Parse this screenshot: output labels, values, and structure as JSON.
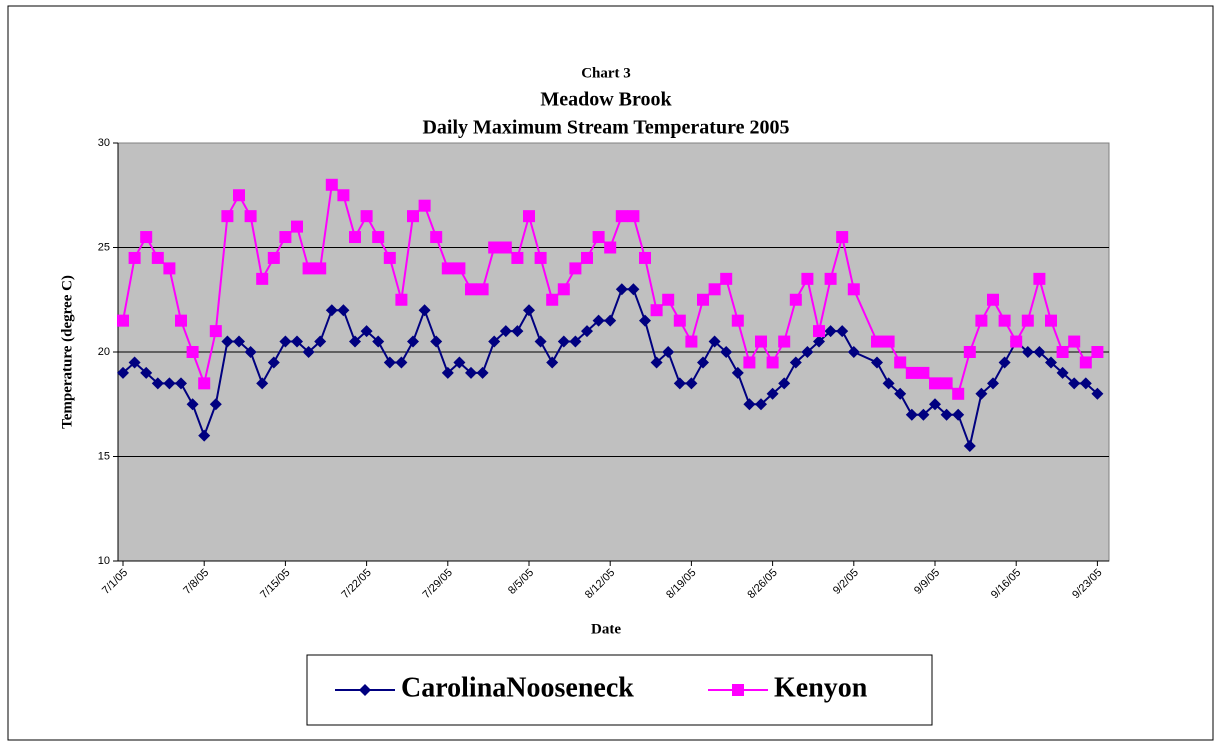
{
  "chart_data": {
    "type": "line",
    "title_lines": [
      "Chart 3",
      "Meadow Brook",
      "Daily Maximum Stream Temperature 2005"
    ],
    "xlabel": "Date",
    "ylabel": "Temperature (degree C)",
    "x": [
      "7/1/05",
      "7/2/05",
      "7/3/05",
      "7/4/05",
      "7/5/05",
      "7/6/05",
      "7/7/05",
      "7/8/05",
      "7/9/05",
      "7/10/05",
      "7/11/05",
      "7/12/05",
      "7/13/05",
      "7/14/05",
      "7/15/05",
      "7/16/05",
      "7/17/05",
      "7/18/05",
      "7/19/05",
      "7/20/05",
      "7/21/05",
      "7/22/05",
      "7/23/05",
      "7/24/05",
      "7/25/05",
      "7/26/05",
      "7/27/05",
      "7/28/05",
      "7/29/05",
      "7/30/05",
      "7/31/05",
      "8/1/05",
      "8/2/05",
      "8/3/05",
      "8/4/05",
      "8/5/05",
      "8/6/05",
      "8/7/05",
      "8/8/05",
      "8/9/05",
      "8/10/05",
      "8/11/05",
      "8/12/05",
      "8/13/05",
      "8/14/05",
      "8/15/05",
      "8/16/05",
      "8/17/05",
      "8/18/05",
      "8/19/05",
      "8/20/05",
      "8/21/05",
      "8/22/05",
      "8/23/05",
      "8/24/05",
      "8/25/05",
      "8/26/05",
      "8/27/05",
      "8/28/05",
      "8/29/05",
      "8/30/05",
      "8/31/05",
      "9/1/05",
      "9/2/05",
      "9/4/05",
      "9/5/05",
      "9/6/05",
      "9/7/05",
      "9/8/05",
      "9/9/05",
      "9/10/05",
      "9/11/05",
      "9/12/05",
      "9/13/05",
      "9/14/05",
      "9/15/05",
      "9/16/05",
      "9/17/05",
      "9/18/05",
      "9/19/05",
      "9/20/05",
      "9/21/05",
      "9/22/05",
      "9/23/05"
    ],
    "series": [
      {
        "name": "CarolinaNooseneck",
        "color": "#000080",
        "marker": "diamond",
        "values": [
          19,
          19.5,
          19,
          18.5,
          18.5,
          18.5,
          17.5,
          16,
          17.5,
          20.5,
          20.5,
          20,
          18.5,
          19.5,
          20.5,
          20.5,
          20,
          20.5,
          22,
          22,
          20.5,
          21,
          20.5,
          19.5,
          19.5,
          20.5,
          22,
          20.5,
          19,
          19.5,
          19,
          19,
          20.5,
          21,
          21,
          22,
          20.5,
          19.5,
          20.5,
          20.5,
          21,
          21.5,
          21.5,
          23,
          23,
          21.5,
          19.5,
          20,
          18.5,
          18.5,
          19.5,
          20.5,
          20,
          19,
          17.5,
          17.5,
          18,
          18.5,
          19.5,
          20,
          20.5,
          21,
          21,
          20,
          19.5,
          18.5,
          18,
          17,
          17,
          17.5,
          17,
          17,
          15.5,
          18,
          18.5,
          19.5,
          20.5,
          20,
          20,
          19.5,
          19,
          18.5,
          18.5,
          18
        ]
      },
      {
        "name": "Kenyon",
        "color": "#ff00ff",
        "marker": "square",
        "values": [
          21.5,
          24.5,
          25.5,
          24.5,
          24,
          21.5,
          20,
          18.5,
          21,
          26.5,
          27.5,
          26.5,
          23.5,
          24.5,
          25.5,
          26,
          24,
          24,
          28,
          27.5,
          25.5,
          26.5,
          25.5,
          24.5,
          22.5,
          26.5,
          27,
          25.5,
          24,
          24,
          23,
          23,
          25,
          25,
          24.5,
          26.5,
          24.5,
          22.5,
          23,
          24,
          24.5,
          25.5,
          25,
          26.5,
          26.5,
          24.5,
          22,
          22.5,
          21.5,
          20.5,
          22.5,
          23,
          23.5,
          21.5,
          19.5,
          20.5,
          19.5,
          20.5,
          22.5,
          23.5,
          21,
          23.5,
          25.5,
          23,
          20.5,
          20.5,
          19.5,
          19,
          19,
          18.5,
          18.5,
          18,
          20,
          21.5,
          22.5,
          21.5,
          20.5,
          21.5,
          23.5,
          21.5,
          20,
          20.5,
          19.5,
          20
        ]
      }
    ],
    "xlim": [
      "7/1/05",
      "9/24/05"
    ],
    "xticks": [
      "7/1/05",
      "7/8/05",
      "7/15/05",
      "7/22/05",
      "7/29/05",
      "8/5/05",
      "8/12/05",
      "8/19/05",
      "8/26/05",
      "9/2/05",
      "9/9/05",
      "9/16/05",
      "9/23/05"
    ],
    "ylim": [
      10,
      30
    ],
    "yticks": [
      10,
      15,
      20,
      25,
      30
    ],
    "grid": true,
    "plot_background": "#c0c0c0",
    "legend_position": "bottom"
  }
}
